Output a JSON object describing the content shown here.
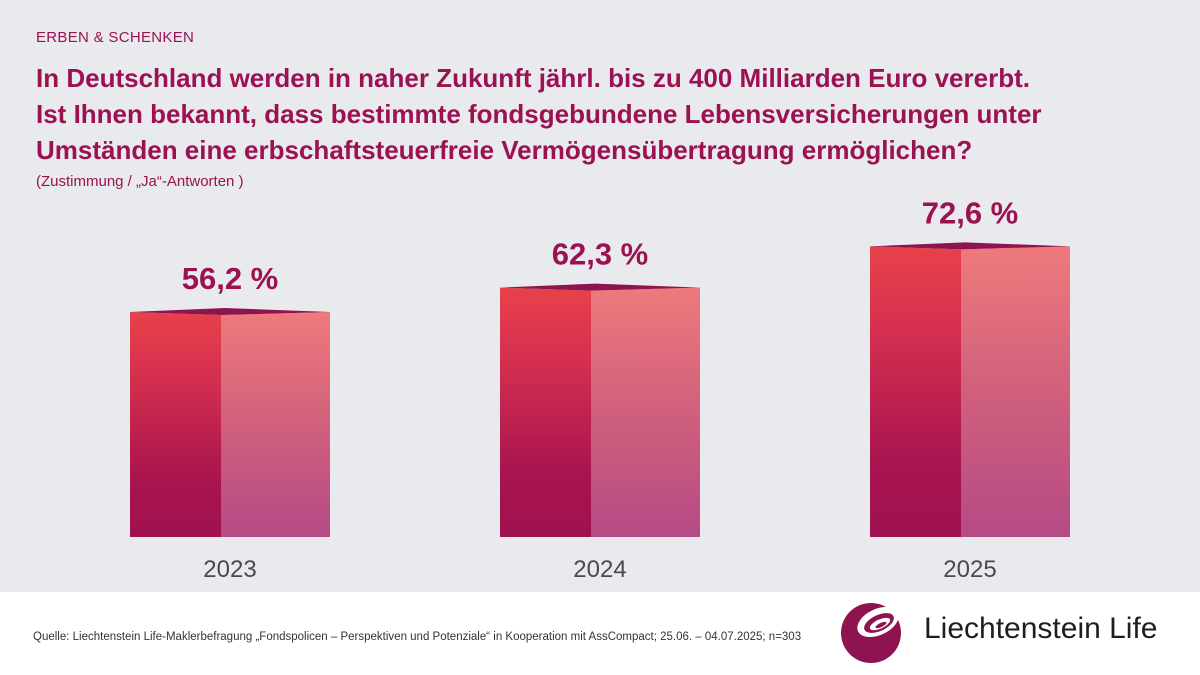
{
  "kicker": "ERBEN & SCHENKEN",
  "title_lines": [
    "In Deutschland werden in naher Zukunft jährl. bis zu 400 Milliarden Euro vererbt.",
    "Ist Ihnen bekannt, dass bestimmte fondsgebundene Lebensversicherungen unter",
    "Umständen eine erbschaftsteuerfreie Vermögensübertragung ermöglichen?"
  ],
  "subtitle": "(Zustimmung / „Ja“-Antworten )",
  "chart_data": {
    "type": "bar",
    "categories": [
      "2023",
      "2024",
      "2025"
    ],
    "values": [
      56.2,
      62.3,
      72.6
    ],
    "value_labels": [
      "56,2 %",
      "62,3 %",
      "72,6 %"
    ],
    "unit": "%",
    "xlabel": "",
    "ylabel": "",
    "ylim": [
      0,
      80
    ],
    "grid": false,
    "legend": "none",
    "style": "3d-column"
  },
  "colors": {
    "accent": "#9b1152",
    "background": "#e9eaee",
    "bar_top_front": "#e8414b",
    "bar_bottom_front": "#9f124f",
    "bar_top_side": "#ee7a7c",
    "bar_bottom_side": "#b54a86"
  },
  "source": "Quelle: Liechtenstein Life-Maklerbefragung „Fondspolicen – Perspektiven und Potenziale“ in Kooperation mit AssCompact; 25.06. – 04.07.2025; n=303",
  "logo": {
    "text": "Liechtenstein Life",
    "icon": "sphere-logo-icon"
  }
}
